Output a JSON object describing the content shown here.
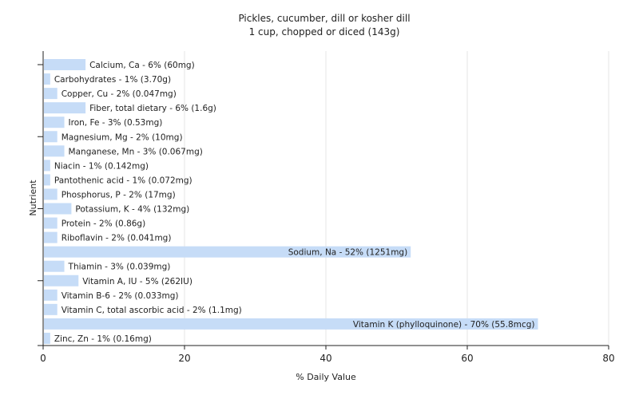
{
  "chart_data": {
    "type": "bar",
    "orientation": "horizontal",
    "title": "Pickles, cucumber, dill or kosher dill",
    "subtitle": "1 cup, chopped or diced (143g)",
    "xlabel": "% Daily Value",
    "ylabel": "Nutrient",
    "xlim": [
      0,
      80
    ],
    "xticks": [
      "0",
      "20",
      "40",
      "60",
      "80"
    ],
    "grid": true,
    "bar_color": "#c6dcf7",
    "categories": [
      "Calcium, Ca",
      "Carbohydrates",
      "Copper, Cu",
      "Fiber, total dietary",
      "Iron, Fe",
      "Magnesium, Mg",
      "Manganese, Mn",
      "Niacin",
      "Pantothenic acid",
      "Phosphorus, P",
      "Potassium, K",
      "Protein",
      "Riboflavin",
      "Sodium, Na",
      "Thiamin",
      "Vitamin A, IU",
      "Vitamin B-6",
      "Vitamin C, total ascorbic acid",
      "Vitamin K (phylloquinone)",
      "Zinc, Zn"
    ],
    "values": [
      6,
      1,
      2,
      6,
      3,
      2,
      3,
      1,
      1,
      2,
      4,
      2,
      2,
      52,
      3,
      5,
      2,
      2,
      70,
      1
    ],
    "data_labels": [
      "Calcium, Ca - 6% (60mg)",
      "Carbohydrates - 1% (3.70g)",
      "Copper, Cu - 2% (0.047mg)",
      "Fiber, total dietary - 6% (1.6g)",
      "Iron, Fe - 3% (0.53mg)",
      "Magnesium, Mg - 2% (10mg)",
      "Manganese, Mn - 3% (0.067mg)",
      "Niacin - 1% (0.142mg)",
      "Pantothenic acid - 1% (0.072mg)",
      "Phosphorus, P - 2% (17mg)",
      "Potassium, K - 4% (132mg)",
      "Protein - 2% (0.86g)",
      "Riboflavin - 2% (0.041mg)",
      "Sodium, Na - 52% (1251mg)",
      "Thiamin - 3% (0.039mg)",
      "Vitamin A, IU - 5% (262IU)",
      "Vitamin B-6 - 2% (0.033mg)",
      "Vitamin C, total ascorbic acid - 2% (1.1mg)",
      "Vitamin K (phylloquinone) - 70% (55.8mcg)",
      "Zinc, Zn - 1% (0.16mg)"
    ]
  }
}
